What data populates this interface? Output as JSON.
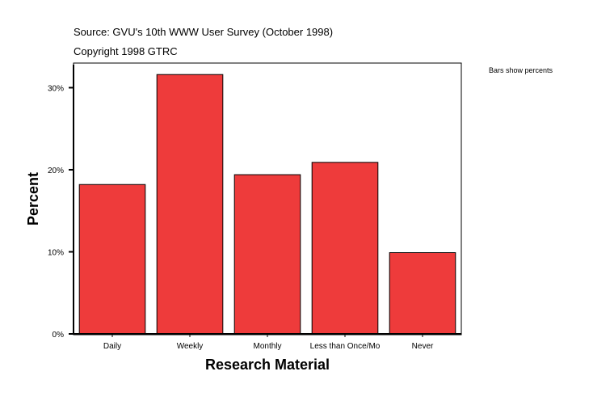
{
  "header": {
    "source_line": "Source: GVU's 10th WWW User Survey (October 1998)",
    "copyright_line": "Copyright 1998 GTRC"
  },
  "note": "Bars show percents",
  "chart_data": {
    "type": "bar",
    "categories": [
      "Daily",
      "Weekly",
      "Monthly",
      "Less than Once/Mo",
      "Never"
    ],
    "values": [
      18.2,
      31.6,
      19.4,
      20.9,
      9.9
    ],
    "xlabel": "Research Material",
    "ylabel": "Percent",
    "ylim": [
      0,
      33
    ],
    "yticks": [
      0,
      10,
      20,
      30
    ],
    "ytick_labels": [
      "0%",
      "10%",
      "20%",
      "30%"
    ],
    "bar_color": "#EE3B3B",
    "grid": false,
    "legend": "none"
  }
}
